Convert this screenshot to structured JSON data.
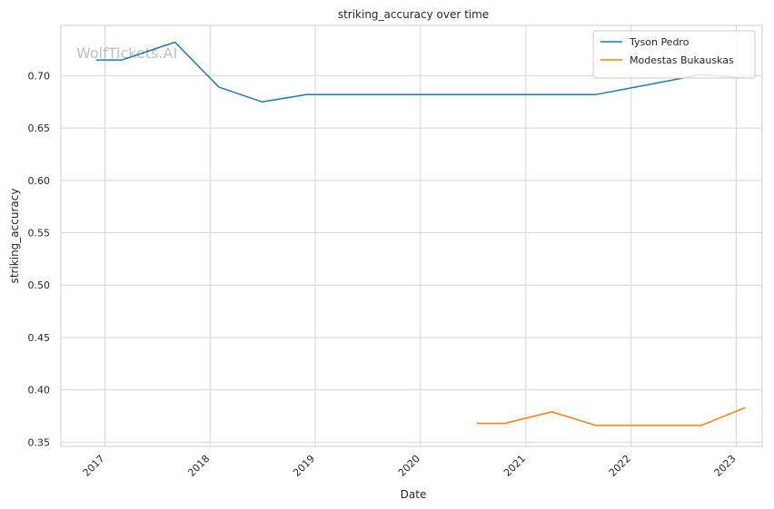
{
  "chart_data": {
    "type": "line",
    "title": "striking_accuracy over time",
    "xlabel": "Date",
    "ylabel": "striking_accuracy",
    "watermark": "WolfTickets.AI",
    "x_axis_type": "date",
    "xlim": [
      "2016-08-01",
      "2023-04-01"
    ],
    "ylim": [
      0.346,
      0.748
    ],
    "x_ticks": [
      "2017",
      "2018",
      "2019",
      "2020",
      "2021",
      "2022",
      "2023"
    ],
    "y_ticks": [
      "0.35",
      "0.40",
      "0.45",
      "0.50",
      "0.55",
      "0.60",
      "0.65",
      "0.70"
    ],
    "grid": true,
    "legend_position": "top-right",
    "series": [
      {
        "name": "Tyson Pedro",
        "color": "#1f77b4",
        "points": [
          {
            "x": "2016-12-01",
            "y": 0.715
          },
          {
            "x": "2017-03-01",
            "y": 0.715
          },
          {
            "x": "2017-09-01",
            "y": 0.732
          },
          {
            "x": "2018-02-01",
            "y": 0.689
          },
          {
            "x": "2018-07-01",
            "y": 0.675
          },
          {
            "x": "2018-12-01",
            "y": 0.682
          },
          {
            "x": "2021-09-01",
            "y": 0.682
          },
          {
            "x": "2022-04-01",
            "y": 0.693
          },
          {
            "x": "2022-09-01",
            "y": 0.701
          },
          {
            "x": "2023-02-01",
            "y": 0.698
          }
        ]
      },
      {
        "name": "Modestas Bukauskas",
        "color": "#ff7f0e",
        "points": [
          {
            "x": "2020-07-15",
            "y": 0.368
          },
          {
            "x": "2020-10-20",
            "y": 0.368
          },
          {
            "x": "2021-04-01",
            "y": 0.379
          },
          {
            "x": "2021-09-01",
            "y": 0.366
          },
          {
            "x": "2022-09-01",
            "y": 0.366
          },
          {
            "x": "2023-02-01",
            "y": 0.383
          }
        ]
      }
    ]
  }
}
